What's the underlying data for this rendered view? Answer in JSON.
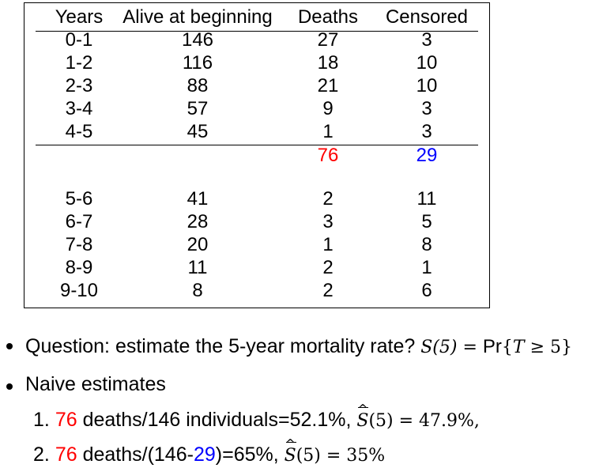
{
  "table": {
    "headers": [
      "Years",
      "Alive at beginning",
      "Deaths",
      "Censored"
    ],
    "rows_first": [
      [
        "0-1",
        "146",
        "27",
        "3"
      ],
      [
        "1-2",
        "116",
        "18",
        "10"
      ],
      [
        "2-3",
        "88",
        "21",
        "10"
      ],
      [
        "3-4",
        "57",
        "9",
        "3"
      ],
      [
        "4-5",
        "45",
        "1",
        "3"
      ]
    ],
    "totals": {
      "deaths": "76",
      "censored": "29"
    },
    "rows_second": [
      [
        "5-6",
        "41",
        "2",
        "11"
      ],
      [
        "6-7",
        "28",
        "3",
        "5"
      ],
      [
        "7-8",
        "20",
        "1",
        "8"
      ],
      [
        "8-9",
        "11",
        "2",
        "1"
      ],
      [
        "9-10",
        "8",
        "2",
        "6"
      ]
    ]
  },
  "bullets": {
    "question_text": "Question: estimate the 5-year mortality rate?",
    "question_math": {
      "lhs": "S(5) = ",
      "pr": "Pr",
      "brace_open": "{",
      "var": "T",
      "rel": " ≥ 5",
      "brace_close": "}"
    },
    "naive_label": "Naive estimates",
    "items": [
      {
        "number": "1.",
        "deaths": "76",
        "text": " deaths/146 individuals=52.1%, ",
        "math_s": "S",
        "math_rest": "(5) = 47.9%,"
      },
      {
        "number": "2.",
        "deaths": "76",
        "text_a": " deaths/(146-",
        "censored": "29",
        "text_b": ")=65%, ",
        "math_s": "S",
        "math_rest": "(5) = 35%"
      }
    ]
  },
  "colors": {
    "deaths_highlight": "#ff0000",
    "censored_highlight": "#0000ff"
  }
}
